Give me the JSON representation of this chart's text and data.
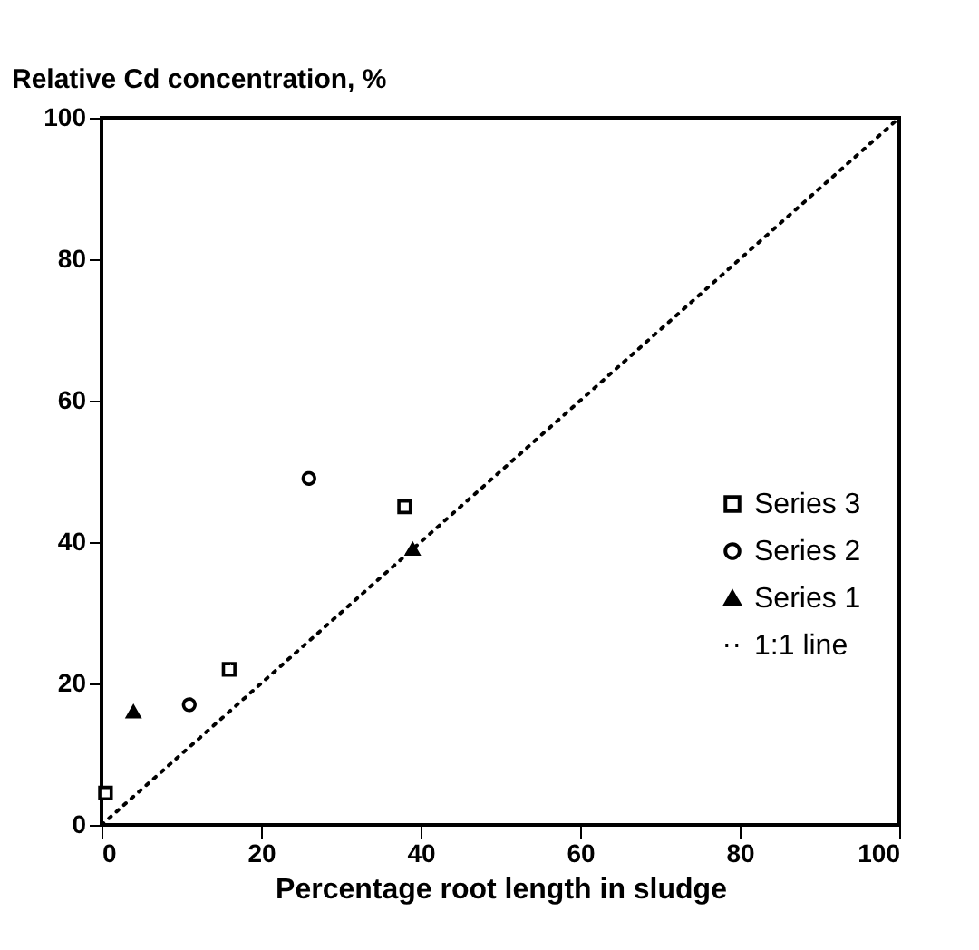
{
  "chart_data": {
    "type": "scatter",
    "ylabel": "Relative Cd concentration, %",
    "xlabel": "Percentage root length in sludge",
    "xlim": [
      0,
      100
    ],
    "ylim": [
      0,
      100
    ],
    "xticks": [
      0,
      20,
      40,
      60,
      80,
      100
    ],
    "yticks": [
      0,
      20,
      40,
      60,
      80,
      100
    ],
    "grid": false,
    "legend": "right",
    "series": [
      {
        "name": "Series 3",
        "color": "#000000",
        "marker": "square",
        "x": [
          0.5,
          16,
          38
        ],
        "values": [
          4.5,
          22,
          45
        ]
      },
      {
        "name": "Series 2",
        "color": "#000000",
        "marker": "circle",
        "x": [
          11,
          26
        ],
        "values": [
          17,
          49
        ]
      },
      {
        "name": "Series 1",
        "color": "#000000",
        "marker": "triangle",
        "x": [
          4,
          39
        ],
        "values": [
          16,
          39
        ]
      },
      {
        "name": "1:1 line",
        "type": "line",
        "color": "#000000",
        "line_style": "dotted",
        "x": [
          0,
          100
        ],
        "values": [
          0,
          100
        ]
      }
    ]
  }
}
